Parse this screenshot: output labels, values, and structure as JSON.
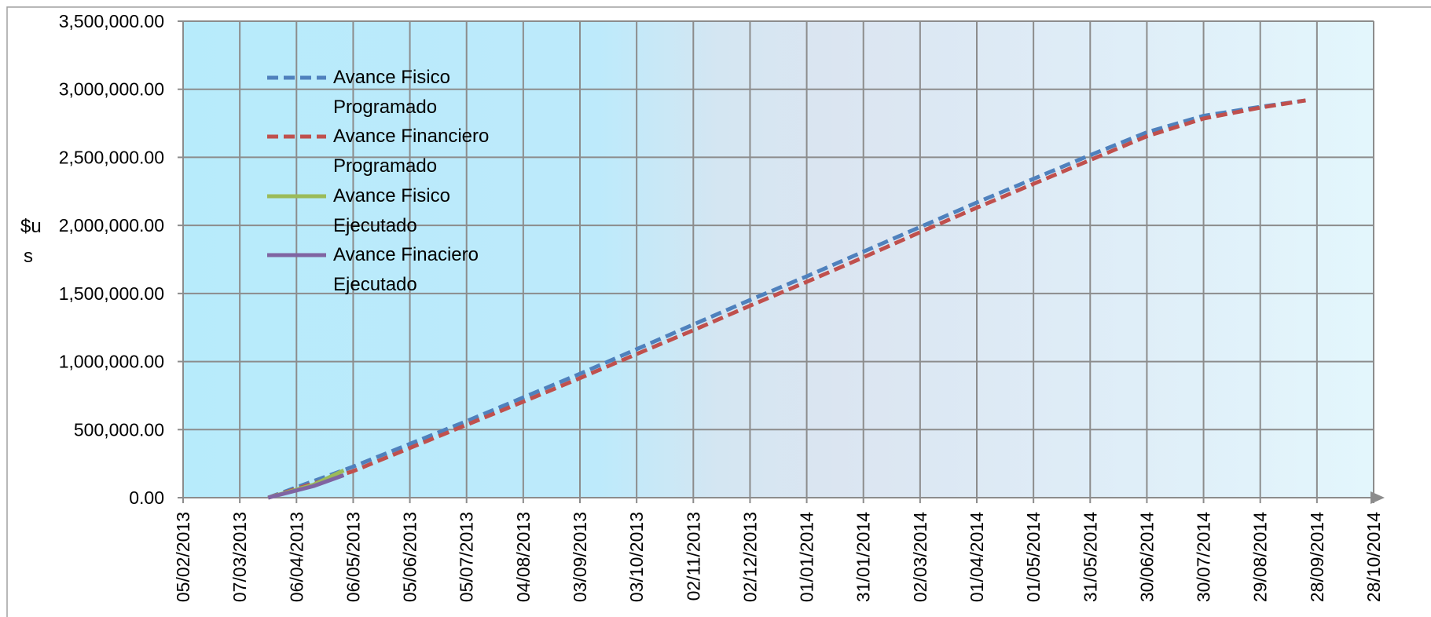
{
  "chart_data": {
    "type": "line",
    "y_label": "$us",
    "xlim": [
      "05/02/2013",
      "28/10/2014"
    ],
    "xticks": [
      "05/02/2013",
      "07/03/2013",
      "06/04/2013",
      "06/05/2013",
      "05/06/2013",
      "05/07/2013",
      "04/08/2013",
      "03/09/2013",
      "03/10/2013",
      "02/11/2013",
      "02/12/2013",
      "01/01/2014",
      "31/01/2014",
      "02/03/2014",
      "01/04/2014",
      "01/05/2014",
      "31/05/2014",
      "30/06/2014",
      "30/07/2014",
      "29/08/2014",
      "28/09/2014",
      "28/10/2014"
    ],
    "ylim": [
      0,
      3500000
    ],
    "yticks": [
      {
        "value": 0,
        "label": "0.00"
      },
      {
        "value": 500000,
        "label": "500,000.00"
      },
      {
        "value": 1000000,
        "label": "1,000,000.00"
      },
      {
        "value": 1500000,
        "label": "1,500,000.00"
      },
      {
        "value": 2000000,
        "label": "2,000,000.00"
      },
      {
        "value": 2500000,
        "label": "2,500,000.00"
      },
      {
        "value": 3000000,
        "label": "3,000,000.00"
      },
      {
        "value": 3500000,
        "label": "3,500,000.00"
      }
    ],
    "grid": true,
    "legend": "upper left",
    "series": [
      {
        "name": "Avance Fisico Programado",
        "color": "#4f81bd",
        "dash": true,
        "x": [
          "22/03/2013",
          "06/05/2013",
          "05/06/2013",
          "05/07/2013",
          "04/08/2013",
          "03/09/2013",
          "03/10/2013",
          "02/11/2013",
          "02/12/2013",
          "01/01/2014",
          "31/01/2014",
          "02/03/2014",
          "01/04/2014",
          "01/05/2014",
          "31/05/2014",
          "30/06/2014",
          "30/07/2014",
          "29/08/2014",
          "22/09/2014"
        ],
        "values": [
          0,
          228000,
          395000,
          562000,
          736000,
          910000,
          1091000,
          1272000,
          1452000,
          1626000,
          1807000,
          1988000,
          2168000,
          2342000,
          2516000,
          2684000,
          2805000,
          2871000,
          2918000
        ]
      },
      {
        "name": "Avance Financiero Programado",
        "color": "#c0504d",
        "dash": true,
        "x": [
          "22/03/2013",
          "06/05/2013",
          "05/06/2013",
          "05/07/2013",
          "04/08/2013",
          "03/09/2013",
          "03/10/2013",
          "02/11/2013",
          "02/12/2013",
          "01/01/2014",
          "31/01/2014",
          "02/03/2014",
          "01/04/2014",
          "01/05/2014",
          "31/05/2014",
          "30/06/2014",
          "30/07/2014",
          "29/08/2014",
          "22/09/2014"
        ],
        "values": [
          0,
          195000,
          365000,
          535000,
          705000,
          878000,
          1055000,
          1230000,
          1410000,
          1585000,
          1765000,
          1950000,
          2130000,
          2305000,
          2480000,
          2655000,
          2785000,
          2865000,
          2918000
        ]
      },
      {
        "name": "Avance Fisico Ejecutado",
        "color": "#9bbb59",
        "dash": false,
        "x": [
          "22/03/2013",
          "15/04/2013",
          "01/05/2013"
        ],
        "values": [
          0,
          95000,
          200000
        ]
      },
      {
        "name": "Avance Finaciero Ejecutado",
        "color": "#8064a2",
        "dash": false,
        "x": [
          "22/03/2013",
          "15/04/2013",
          "01/05/2013"
        ],
        "values": [
          0,
          85000,
          165000
        ]
      }
    ]
  }
}
